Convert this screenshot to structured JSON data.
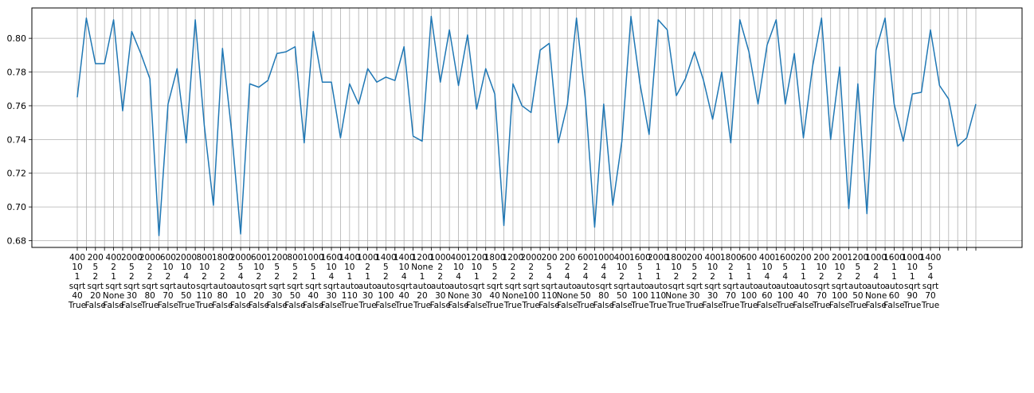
{
  "chart_data": {
    "type": "line",
    "title": "",
    "xlabel": "",
    "ylabel": "",
    "ylim": [
      0.676,
      0.818
    ],
    "grid": true,
    "legend": "none",
    "line_color": "#1f77b4",
    "yticks": [
      0.68,
      0.7,
      0.72,
      0.74,
      0.76,
      0.78,
      0.8
    ],
    "ytick_labels": [
      "0.68",
      "0.70",
      "0.72",
      "0.74",
      "0.76",
      "0.78",
      "0.80"
    ],
    "xtick_labels": [
      "400\n10\n1\nsqrt\n40\nTrue",
      "200\n5\n2\nsqrt\n20\nFalse",
      "400\n2\n1\nsqrt\nNone\nFalse",
      "2000\n5\n2\nsqrt\n30\nFalse",
      "2000\n2\n2\nsqrt\n80\nTrue",
      "600\n10\n2\nsqrt\n70\nFalse",
      "2000\n10\n4\nauto\n50\nTrue",
      "800\n10\n2\nsqrt\n110\nTrue",
      "1800\n2\n2\nauto\n80\nFalse",
      "2000\n5\n4\nauto\n10\nFalse",
      "600\n10\n2\nsqrt\n20\nFalse",
      "1200\n5\n2\nsqrt\n30\nFalse",
      "800\n5\n2\nsqrt\n50\nFalse",
      "1000\n5\n1\nsqrt\n40\nFalse",
      "1600\n10\n4\nsqrt\n30\nFalse",
      "1400\n10\n1\nauto\n110\nTrue",
      "1000\n2\n1\nauto\n30\nTrue",
      "1400\n5\n2\nauto\n100\nFalse",
      "1400\n10\n4\nsqrt\n40\nTrue",
      "1200\nNone\n1\nauto\n20\nTrue",
      "1000\n2\n2\nauto\n30\nFalse",
      "400\n10\n4\nauto\nNone\nFalse",
      "1200\n10\n1\nsqrt\n30\nFalse",
      "1800\n5\n2\nsqrt\n40\nTrue",
      "1200\n2\n2\nsqrt\nNone\nTrue",
      "2000\n2\n2\nsqrt\n100\nTrue",
      "200\n5\n4\nsqrt\n110\nFalse",
      "200\n2\n4\nauto\nNone\nFalse",
      "600\n2\n4\nauto\n50\nTrue",
      "1000\n4\n4\nsqrt\n80\nFalse",
      "400\n10\n2\nsqrt\n50\nFalse",
      "1600\n5\n1\nauto\n100\nTrue",
      "2000\n1\n1\nauto\n110\nTrue",
      "1800\n10\n2\nsqrt\nNone\nTrue",
      "200\n5\n2\nsqrt\n30\nTrue",
      "400\n10\n2\nsqrt\n30\nFalse",
      "1800\n2\n1\nsqrt\n70\nTrue",
      "600\n1\n1\nauto\n100\nTrue",
      "400\n10\n4\nauto\n60\nFalse",
      "1600\n5\n4\nauto\n100\nTrue",
      "200\n1\n1\nauto\n40\nFalse",
      "200\n10\n2\nsqrt\n70\nTrue",
      "200\n10\n2\nsqrt\n100\nFalse",
      "1200\n5\n2\nauto\n50\nTrue",
      "1000\n2\n4\nauto\nNone\nFalse",
      "1600\n1\n1\nauto\n60\nFalse",
      "1000\n10\n1\nsqrt\n90\nTrue",
      "1400\n5\n4\nsqrt\n70\nTrue"
    ],
    "x": [
      1,
      2,
      3,
      4,
      5,
      6,
      7,
      8,
      9,
      10,
      11,
      12,
      13,
      14,
      15,
      16,
      17,
      18,
      19,
      20,
      21,
      22,
      23,
      24,
      25,
      26,
      27,
      28,
      29,
      30,
      31,
      32,
      33,
      34,
      35,
      36,
      37,
      38,
      39,
      40,
      41,
      42,
      43,
      44,
      45,
      46,
      47,
      48,
      49,
      50,
      51,
      52,
      53,
      54,
      55,
      56,
      57,
      58,
      59,
      60,
      61,
      62,
      63,
      64,
      65,
      66,
      67,
      68,
      69,
      70,
      71,
      72,
      73,
      74,
      75,
      76,
      77,
      78,
      79,
      80,
      81,
      82,
      83,
      84,
      85,
      86,
      87,
      88,
      89,
      90,
      91,
      92,
      93,
      94,
      95,
      96,
      97,
      98,
      99,
      100
    ],
    "values": [
      0.765,
      0.812,
      0.785,
      0.785,
      0.811,
      0.757,
      0.804,
      0.791,
      0.776,
      0.683,
      0.761,
      0.782,
      0.738,
      0.811,
      0.748,
      0.701,
      0.794,
      0.745,
      0.684,
      0.773,
      0.771,
      0.775,
      0.791,
      0.792,
      0.795,
      0.738,
      0.804,
      0.774,
      0.774,
      0.741,
      0.773,
      0.761,
      0.782,
      0.774,
      0.777,
      0.775,
      0.795,
      0.742,
      0.739,
      0.813,
      0.774,
      0.805,
      0.772,
      0.802,
      0.758,
      0.782,
      0.767,
      0.689,
      0.773,
      0.76,
      0.756,
      0.793,
      0.797,
      0.738,
      0.761,
      0.812,
      0.763,
      0.688,
      0.761,
      0.701,
      0.739,
      0.813,
      0.773,
      0.743,
      0.811,
      0.805,
      0.766,
      0.776,
      0.792,
      0.775,
      0.752,
      0.78,
      0.738,
      0.811,
      0.792,
      0.761,
      0.796,
      0.811,
      0.761,
      0.791,
      0.741,
      0.783,
      0.812,
      0.74,
      0.783,
      0.699,
      0.773,
      0.696,
      0.793,
      0.812,
      0.761,
      0.739,
      0.767,
      0.768,
      0.805,
      0.772,
      0.764,
      0.736,
      0.741,
      0.761
    ]
  }
}
